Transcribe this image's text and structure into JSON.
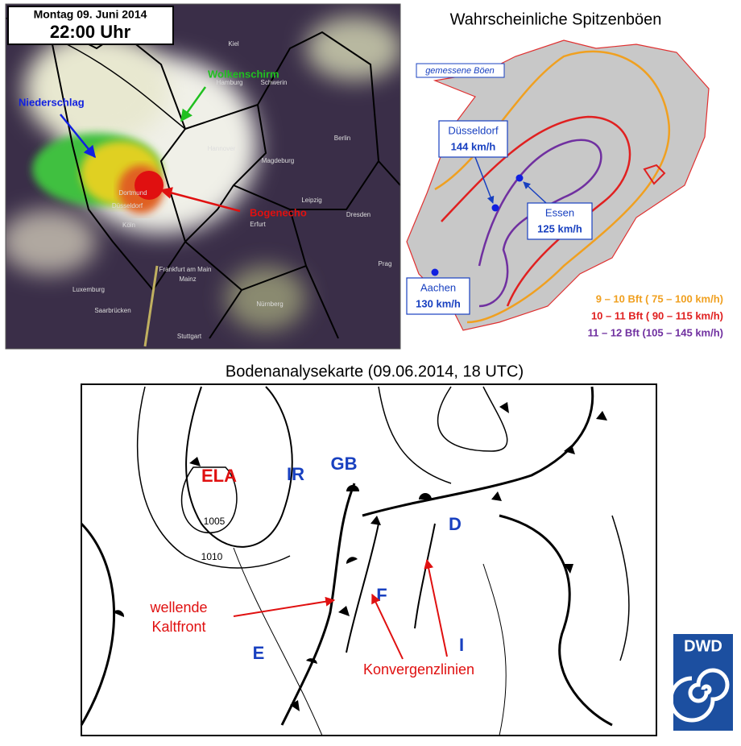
{
  "radar": {
    "date": "Montag 09. Juni 2014",
    "time": "22:00 Uhr",
    "precipitation": "Niederschlag",
    "cloud_shield": "Wolkenschirm",
    "bow_echo": "Bogenecho",
    "cities": [
      "Kiel",
      "Hamburg",
      "Schwerin",
      "Berlin",
      "Hannover",
      "Magdeburg",
      "Leipzig",
      "Dresden",
      "Erfurt",
      "Dortmund",
      "Düsseldorf",
      "Köln",
      "Frankfurt am Main",
      "Mainz",
      "Luxemburg",
      "Saarbrücken",
      "Stuttgart",
      "Nürnberg",
      "Prag"
    ]
  },
  "gusts": {
    "title": "Wahrscheinliche Spitzenböen",
    "measured": "gemessene Böen",
    "stations": [
      {
        "name": "Düsseldorf",
        "value": "144 km/h"
      },
      {
        "name": "Essen",
        "value": "125 km/h"
      },
      {
        "name": "Aachen",
        "value": "130 km/h"
      }
    ],
    "legend": [
      {
        "label": "9 – 10 Bft (  75 – 100 km/h)",
        "color": "#f0a020"
      },
      {
        "label": "10 – 11 Bft (  90 – 115 km/h)",
        "color": "#e02020"
      },
      {
        "label": "11 – 12 Bft (105 – 145 km/h)",
        "color": "#7030a0"
      }
    ]
  },
  "analysis": {
    "title": "Bodenanalysekarte (09.06.2014, 18 UTC)",
    "isobars": [
      "1005",
      "1010"
    ],
    "air_masses": {
      "ela": "ELA",
      "ir": "IR",
      "gb": "GB",
      "d": "D",
      "f": "F",
      "i": "I",
      "e": "E"
    },
    "cold_front": "wellende Kaltfront",
    "convergence": "Konvergenzlinien"
  },
  "logo": "DWD"
}
